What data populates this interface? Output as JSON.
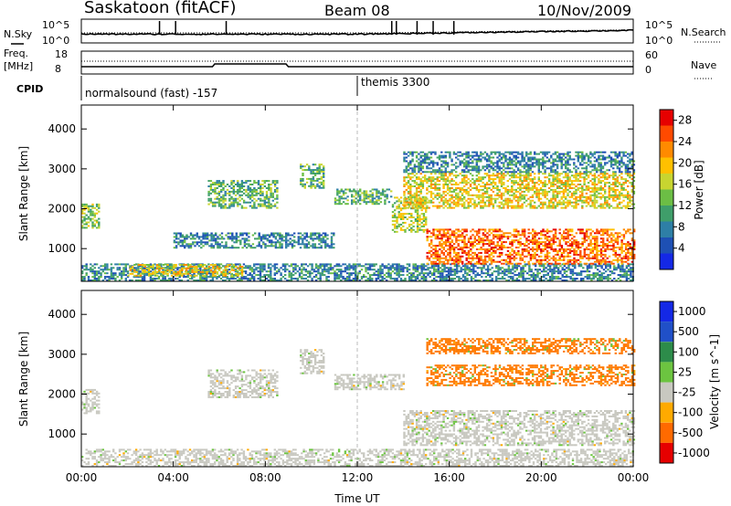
{
  "header": {
    "station": "Saskatoon (fitACF)",
    "beam": "Beam 08",
    "date": "10/Nov/2009"
  },
  "top_panels": {
    "nsky_label": "N.Sky",
    "nsky_ticks": [
      "10^5",
      "10^0"
    ],
    "nsearch_label": "N.Search",
    "nsearch_ticks": [
      "10^5",
      "10^0"
    ],
    "freq_label": "Freq.",
    "freq_unit": "[MHz]",
    "freq_ticks": [
      "18",
      "8"
    ],
    "nave_label": "Nave",
    "nave_ticks": [
      "60",
      "0"
    ],
    "cpid_label": "CPID",
    "cpid_modes": [
      {
        "label": "normalsound (fast) -157",
        "start_hour": 0
      },
      {
        "label": "themis 3300",
        "start_hour": 12
      }
    ]
  },
  "chart_data": [
    {
      "type": "heatmap",
      "title": "",
      "xlabel": "Time UT",
      "ylabel": "Slant Range [km]",
      "xlim": [
        0,
        24
      ],
      "ylim": [
        180,
        4600
      ],
      "x_ticks": [
        "00:00",
        "04:00",
        "08:00",
        "12:00",
        "16:00",
        "20:00",
        "00:00"
      ],
      "y_ticks": [
        1000,
        2000,
        3000,
        4000
      ],
      "colorbar": {
        "label": "Power [dB]",
        "ticks": [
          4,
          8,
          12,
          16,
          20,
          24,
          28
        ],
        "range": [
          0,
          30
        ],
        "colors": [
          "#1428e6",
          "#1e50b4",
          "#2e7fa6",
          "#3f9e6a",
          "#6cbe45",
          "#c8d530",
          "#ffc000",
          "#ff8a00",
          "#ff4a00",
          "#e60000"
        ]
      },
      "features": [
        {
          "t0": 0.0,
          "t1": 24.0,
          "r0": 180,
          "r1": 600,
          "power": 8
        },
        {
          "t0": 2.0,
          "t1": 7.0,
          "r0": 300,
          "r1": 600,
          "power": 18
        },
        {
          "t0": 0.0,
          "t1": 0.8,
          "r0": 1500,
          "r1": 2100,
          "power": 14
        },
        {
          "t0": 5.5,
          "t1": 8.5,
          "r0": 2000,
          "r1": 2700,
          "power": 12
        },
        {
          "t0": 9.5,
          "t1": 10.5,
          "r0": 2500,
          "r1": 3100,
          "power": 12
        },
        {
          "t0": 11.0,
          "t1": 13.5,
          "r0": 2100,
          "r1": 2500,
          "power": 12
        },
        {
          "t0": 13.5,
          "t1": 15.0,
          "r0": 1400,
          "r1": 2300,
          "power": 16
        },
        {
          "t0": 15.0,
          "t1": 24.0,
          "r0": 600,
          "r1": 1500,
          "power": 24
        },
        {
          "t0": 14.0,
          "t1": 24.0,
          "r0": 2000,
          "r1": 2900,
          "power": 18
        },
        {
          "t0": 14.0,
          "t1": 24.0,
          "r0": 2900,
          "r1": 3400,
          "power": 8
        },
        {
          "t0": 4.0,
          "t1": 11.0,
          "r0": 1000,
          "r1": 1400,
          "power": 8
        }
      ]
    },
    {
      "type": "heatmap",
      "title": "",
      "xlabel": "Time UT",
      "ylabel": "Slant Range [km]",
      "xlim": [
        0,
        24
      ],
      "ylim": [
        180,
        4600
      ],
      "x_ticks": [
        "00:00",
        "04:00",
        "08:00",
        "12:00",
        "16:00",
        "20:00",
        "00:00"
      ],
      "y_ticks": [
        1000,
        2000,
        3000,
        4000
      ],
      "colorbar": {
        "label": "Velocity [m s^-1]",
        "ticks": [
          "1000",
          "500",
          "100",
          "25",
          "-25",
          "-100",
          "-500",
          "-1000"
        ],
        "colors": [
          "#1428e6",
          "#2050c8",
          "#2d8c4a",
          "#6cc440",
          "#c8c8c0",
          "#ffaa00",
          "#ff6a00",
          "#e60000"
        ]
      },
      "features": [
        {
          "t0": 0.0,
          "t1": 24.0,
          "r0": 180,
          "r1": 600,
          "velocity_class": "-25..25"
        },
        {
          "t0": 0.0,
          "t1": 0.8,
          "r0": 1500,
          "r1": 2100,
          "velocity_class": "-25..25"
        },
        {
          "t0": 5.5,
          "t1": 8.5,
          "r0": 1900,
          "r1": 2600,
          "velocity_class": "-25..25"
        },
        {
          "t0": 9.5,
          "t1": 10.5,
          "r0": 2500,
          "r1": 3100,
          "velocity_class": "-25..25"
        },
        {
          "t0": 11.0,
          "t1": 14.0,
          "r0": 2100,
          "r1": 2500,
          "velocity_class": "-25..25"
        },
        {
          "t0": 14.0,
          "t1": 24.0,
          "r0": 700,
          "r1": 1600,
          "velocity_class": "-25..25"
        },
        {
          "t0": 15.0,
          "t1": 24.0,
          "r0": 2200,
          "r1": 2700,
          "velocity_class": "-100..-500"
        },
        {
          "t0": 15.0,
          "t1": 24.0,
          "r0": 3000,
          "r1": 3400,
          "velocity_class": "-100..-500"
        }
      ]
    }
  ]
}
